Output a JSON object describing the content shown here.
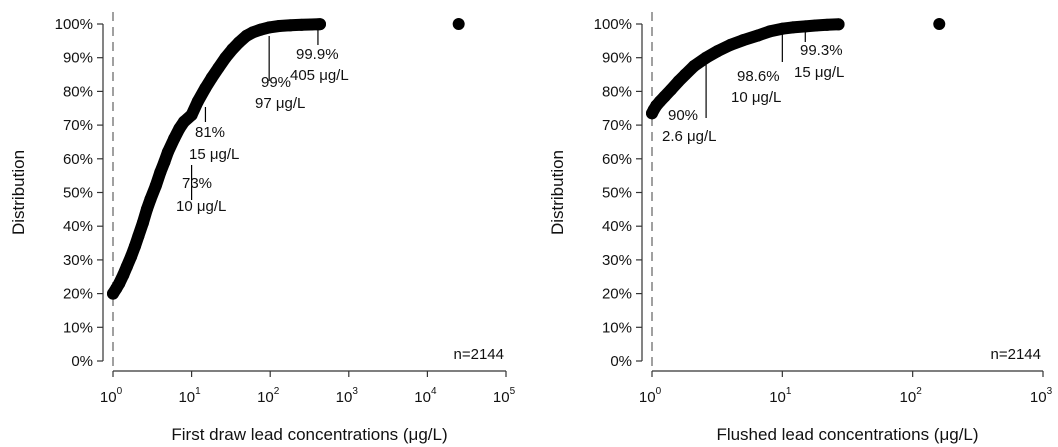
{
  "chart_data": [
    {
      "type": "scatter",
      "subtype": "cumulative-distribution",
      "x_scale": "log",
      "xlabel": "First draw lead concentrations (μg/L)",
      "ylabel": "Distribution",
      "xlim": [
        1,
        100000
      ],
      "ylim": [
        0,
        100
      ],
      "x_ticks": [
        1,
        10,
        100,
        1000,
        10000,
        100000
      ],
      "x_tick_labels": [
        {
          "base": "10",
          "exp": "0"
        },
        {
          "base": "10",
          "exp": "1"
        },
        {
          "base": "10",
          "exp": "2"
        },
        {
          "base": "10",
          "exp": "3"
        },
        {
          "base": "10",
          "exp": "4"
        },
        {
          "base": "10",
          "exp": "5"
        }
      ],
      "y_ticks": [
        0,
        10,
        20,
        30,
        40,
        50,
        60,
        70,
        80,
        90,
        100
      ],
      "y_tick_labels": [
        "0%",
        "10%",
        "20%",
        "30%",
        "40%",
        "50%",
        "60%",
        "70%",
        "80%",
        "90%",
        "100%"
      ],
      "reference_line_x": 1,
      "curve_points": [
        [
          1,
          20
        ],
        [
          1.1,
          21.5
        ],
        [
          1.2,
          23
        ],
        [
          1.35,
          25.5
        ],
        [
          1.5,
          28
        ],
        [
          1.7,
          31
        ],
        [
          1.9,
          34
        ],
        [
          2.1,
          37
        ],
        [
          2.4,
          41
        ],
        [
          2.7,
          45
        ],
        [
          3,
          48
        ],
        [
          3.5,
          52
        ],
        [
          4,
          56
        ],
        [
          4.5,
          59
        ],
        [
          5,
          62
        ],
        [
          6,
          66
        ],
        [
          7,
          69
        ],
        [
          8,
          71
        ],
        [
          10,
          73
        ],
        [
          12,
          77
        ],
        [
          15,
          81
        ],
        [
          18,
          84
        ],
        [
          22,
          87
        ],
        [
          27,
          90
        ],
        [
          33,
          92.5
        ],
        [
          40,
          94.5
        ],
        [
          50,
          96.5
        ],
        [
          60,
          97.5
        ],
        [
          75,
          98.3
        ],
        [
          97,
          99
        ],
        [
          130,
          99.4
        ],
        [
          180,
          99.6
        ],
        [
          250,
          99.75
        ],
        [
          330,
          99.85
        ],
        [
          405,
          99.9
        ],
        [
          430,
          99.95
        ]
      ],
      "outliers": [
        [
          25000,
          100
        ]
      ],
      "annotations": [
        {
          "x": 10,
          "y": 73,
          "pct": "73%",
          "conc": "10 μg/L"
        },
        {
          "x": 15,
          "y": 81,
          "pct": "81%",
          "conc": "15 μg/L"
        },
        {
          "x": 97,
          "y": 99,
          "pct": "99%",
          "conc": "97 μg/L"
        },
        {
          "x": 405,
          "y": 99.9,
          "pct": "99.9%",
          "conc": "405 μg/L"
        }
      ],
      "n_label": "n=2144"
    },
    {
      "type": "scatter",
      "subtype": "cumulative-distribution",
      "x_scale": "log",
      "xlabel": "Flushed lead concentrations (μg/L)",
      "ylabel": "Distribution",
      "xlim": [
        1,
        1000
      ],
      "ylim": [
        0,
        100
      ],
      "x_ticks": [
        1,
        10,
        100,
        1000
      ],
      "x_tick_labels": [
        {
          "base": "10",
          "exp": "0"
        },
        {
          "base": "10",
          "exp": "1"
        },
        {
          "base": "10",
          "exp": "2"
        },
        {
          "base": "10",
          "exp": "3"
        }
      ],
      "y_ticks": [
        0,
        10,
        20,
        30,
        40,
        50,
        60,
        70,
        80,
        90,
        100
      ],
      "y_tick_labels": [
        "0%",
        "10%",
        "20%",
        "30%",
        "40%",
        "50%",
        "60%",
        "70%",
        "80%",
        "90%",
        "100%"
      ],
      "reference_line_x": 1,
      "curve_points": [
        [
          1,
          73.5
        ],
        [
          1.03,
          74.5
        ],
        [
          1.08,
          75.8
        ],
        [
          1.15,
          77
        ],
        [
          1.25,
          78.5
        ],
        [
          1.4,
          80.5
        ],
        [
          1.6,
          83
        ],
        [
          1.8,
          85
        ],
        [
          2.1,
          87.5
        ],
        [
          2.6,
          90
        ],
        [
          3.2,
          92
        ],
        [
          4,
          93.8
        ],
        [
          5,
          95.2
        ],
        [
          6.5,
          96.6
        ],
        [
          8,
          97.8
        ],
        [
          10,
          98.6
        ],
        [
          12,
          99
        ],
        [
          15,
          99.3
        ],
        [
          18,
          99.55
        ],
        [
          22,
          99.75
        ],
        [
          27,
          99.9
        ]
      ],
      "outliers": [
        [
          160,
          100
        ]
      ],
      "annotations": [
        {
          "x": 2.6,
          "y": 90,
          "pct": "90%",
          "conc": "2.6 μg/L"
        },
        {
          "x": 10,
          "y": 98.6,
          "pct": "98.6%",
          "conc": "10 μg/L"
        },
        {
          "x": 15,
          "y": 99.3,
          "pct": "99.3%",
          "conc": "15 μg/L"
        }
      ],
      "n_label": "n=2144"
    }
  ]
}
